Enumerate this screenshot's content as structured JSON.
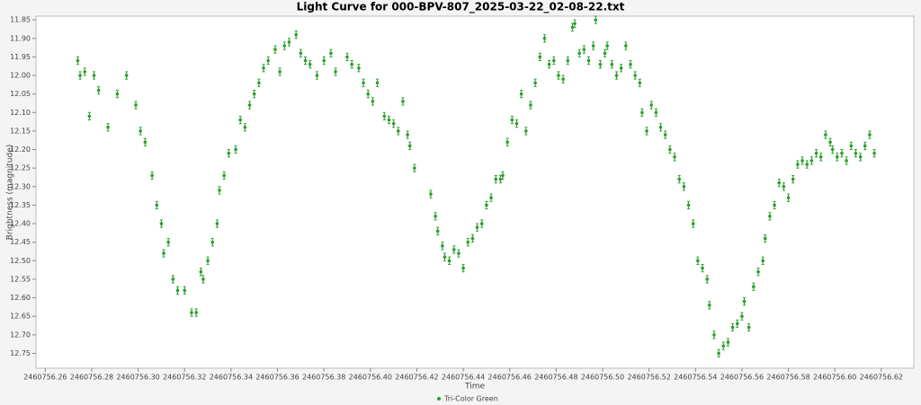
{
  "chart_data": {
    "type": "scatter",
    "title": "Light Curve for 000-BPV-807_2025-03-22_02-08-22.txt",
    "x_label": "Time",
    "y_label": "Brightness (magnitude)",
    "xlim": [
      2460756.256,
      2460756.634
    ],
    "ylim": [
      11.84,
      12.79
    ],
    "y_inverted": true,
    "xticks": [
      2460756.26,
      2460756.28,
      {
        "value": 2460756.3,
        "label": "2460756.30"
      },
      2460756.32,
      2460756.34,
      2460756.36,
      2460756.38,
      {
        "value": 2460756.4,
        "label": "2460756.40"
      },
      2460756.42,
      2460756.44,
      2460756.46,
      2460756.48,
      {
        "value": 2460756.5,
        "label": "2460756.50"
      },
      2460756.52,
      2460756.54,
      2460756.56,
      2460756.58,
      {
        "value": 2460756.6,
        "label": "2460756.60"
      },
      2460756.62
    ],
    "yticks": [
      11.85,
      {
        "value": 11.9,
        "label": "11.90"
      },
      11.95,
      {
        "value": 12.0,
        "label": "12.00"
      },
      12.05,
      {
        "value": 12.1,
        "label": "12.10"
      },
      12.15,
      {
        "value": 12.2,
        "label": "12.20"
      },
      12.25,
      {
        "value": 12.3,
        "label": "12.30"
      },
      12.35,
      {
        "value": 12.4,
        "label": "12.40"
      },
      12.45,
      {
        "value": 12.5,
        "label": "12.50"
      },
      12.55,
      {
        "value": 12.6,
        "label": "12.60"
      },
      12.65,
      {
        "value": 12.7,
        "label": "12.70"
      },
      12.75
    ],
    "series": [
      {
        "name": "Tri-Color Green",
        "color": "#2ca02c",
        "error": 0.01,
        "x": [
          2460756.274,
          2460756.275,
          2460756.277,
          2460756.279,
          2460756.281,
          2460756.283,
          2460756.287,
          2460756.291,
          2460756.295,
          2460756.299,
          2460756.301,
          2460756.303,
          2460756.306,
          2460756.308,
          2460756.31,
          2460756.311,
          2460756.313,
          2460756.315,
          2460756.317,
          2460756.32,
          2460756.323,
          2460756.325,
          2460756.327,
          2460756.328,
          2460756.33,
          2460756.332,
          2460756.334,
          2460756.335,
          2460756.337,
          2460756.339,
          2460756.342,
          2460756.344,
          2460756.346,
          2460756.348,
          2460756.35,
          2460756.352,
          2460756.354,
          2460756.356,
          2460756.359,
          2460756.361,
          2460756.363,
          2460756.365,
          2460756.368,
          2460756.37,
          2460756.372,
          2460756.374,
          2460756.377,
          2460756.38,
          2460756.383,
          2460756.385,
          2460756.39,
          2460756.392,
          2460756.395,
          2460756.397,
          2460756.399,
          2460756.401,
          2460756.403,
          2460756.406,
          2460756.408,
          2460756.41,
          2460756.412,
          2460756.414,
          2460756.416,
          2460756.417,
          2460756.419,
          2460756.426,
          2460756.428,
          2460756.429,
          2460756.431,
          2460756.432,
          2460756.434,
          2460756.436,
          2460756.438,
          2460756.44,
          2460756.442,
          2460756.444,
          2460756.446,
          2460756.448,
          2460756.45,
          2460756.452,
          2460756.454,
          2460756.456,
          2460756.457,
          2460756.459,
          2460756.461,
          2460756.463,
          2460756.465,
          2460756.467,
          2460756.469,
          2460756.471,
          2460756.473,
          2460756.475,
          2460756.477,
          2460756.479,
          2460756.481,
          2460756.483,
          2460756.485,
          2460756.487,
          2460756.488,
          2460756.49,
          2460756.492,
          2460756.494,
          2460756.496,
          2460756.497,
          2460756.499,
          2460756.501,
          2460756.502,
          2460756.504,
          2460756.506,
          2460756.508,
          2460756.51,
          2460756.512,
          2460756.514,
          2460756.516,
          2460756.517,
          2460756.519,
          2460756.521,
          2460756.523,
          2460756.525,
          2460756.527,
          2460756.529,
          2460756.531,
          2460756.533,
          2460756.535,
          2460756.537,
          2460756.539,
          2460756.541,
          2460756.543,
          2460756.545,
          2460756.546,
          2460756.548,
          2460756.55,
          2460756.552,
          2460756.554,
          2460756.556,
          2460756.558,
          2460756.56,
          2460756.561,
          2460756.563,
          2460756.565,
          2460756.567,
          2460756.569,
          2460756.57,
          2460756.572,
          2460756.574,
          2460756.576,
          2460756.578,
          2460756.58,
          2460756.582,
          2460756.584,
          2460756.586,
          2460756.588,
          2460756.59,
          2460756.592,
          2460756.594,
          2460756.596,
          2460756.598,
          2460756.599,
          2460756.601,
          2460756.603,
          2460756.605,
          2460756.607,
          2460756.609,
          2460756.611,
          2460756.613,
          2460756.615,
          2460756.617
        ],
        "values": [
          11.96,
          12.0,
          11.99,
          12.11,
          12.0,
          12.04,
          12.14,
          12.05,
          12.0,
          12.08,
          12.15,
          12.18,
          12.27,
          12.35,
          12.4,
          12.48,
          12.45,
          12.55,
          12.58,
          12.58,
          12.64,
          12.64,
          12.53,
          12.55,
          12.5,
          12.45,
          12.4,
          12.31,
          12.27,
          12.21,
          12.2,
          12.12,
          12.14,
          12.08,
          12.05,
          12.02,
          11.98,
          11.96,
          11.93,
          11.99,
          11.92,
          11.91,
          11.89,
          11.94,
          11.96,
          11.97,
          12.0,
          11.96,
          11.94,
          11.99,
          11.95,
          11.97,
          11.98,
          12.02,
          12.05,
          12.07,
          12.02,
          12.11,
          12.12,
          12.13,
          12.15,
          12.07,
          12.16,
          12.19,
          12.25,
          12.32,
          12.38,
          12.42,
          12.46,
          12.49,
          12.5,
          12.47,
          12.48,
          12.52,
          12.45,
          12.44,
          12.41,
          12.4,
          12.35,
          12.33,
          12.28,
          12.28,
          12.27,
          12.18,
          12.12,
          12.13,
          12.05,
          12.15,
          12.08,
          12.02,
          11.95,
          11.9,
          11.97,
          11.96,
          12.0,
          12.01,
          11.96,
          11.87,
          11.86,
          11.94,
          11.93,
          11.96,
          11.92,
          11.85,
          11.97,
          11.94,
          11.92,
          11.97,
          12.0,
          11.98,
          11.92,
          11.97,
          12.0,
          12.02,
          12.1,
          12.15,
          12.08,
          12.1,
          12.14,
          12.16,
          12.2,
          12.22,
          12.28,
          12.3,
          12.35,
          12.4,
          12.5,
          12.52,
          12.55,
          12.62,
          12.7,
          12.75,
          12.73,
          12.72,
          12.68,
          12.67,
          12.65,
          12.61,
          12.68,
          12.57,
          12.53,
          12.5,
          12.44,
          12.38,
          12.35,
          12.29,
          12.3,
          12.33,
          12.28,
          12.24,
          12.23,
          12.24,
          12.23,
          12.21,
          12.22,
          12.16,
          12.18,
          12.2,
          12.22,
          12.21,
          12.23,
          12.19,
          12.21,
          12.22,
          12.19,
          12.16,
          12.21
        ]
      }
    ]
  }
}
